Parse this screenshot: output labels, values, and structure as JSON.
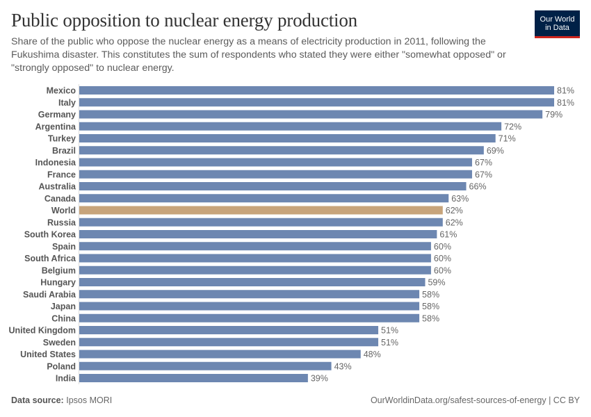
{
  "header": {
    "title": "Public opposition to nuclear energy production",
    "subtitle": "Share of the public who oppose the nuclear energy as a means of electricity production in 2011, following the Fukushima disaster. This constitutes the sum of respondents who stated they were either \"somewhat opposed\" or \"strongly opposed\" to nuclear energy.",
    "logo_line1": "Our World",
    "logo_line2": "in Data"
  },
  "footer": {
    "source_label": "Data source:",
    "source": "Ipsos MORI",
    "url": "OurWorldinData.org/safest-sources-of-energy | CC BY"
  },
  "colors": {
    "bar": "#6d87b1",
    "highlight": "#c7a47b",
    "logo_bg": "#002147",
    "logo_accent": "#ce261e"
  },
  "chart_data": {
    "type": "bar",
    "orientation": "horizontal",
    "unit": "%",
    "xlim": [
      0,
      81
    ],
    "grid": false,
    "highlight": "World",
    "categories": [
      "Mexico",
      "Italy",
      "Germany",
      "Argentina",
      "Turkey",
      "Brazil",
      "Indonesia",
      "France",
      "Australia",
      "Canada",
      "World",
      "Russia",
      "South Korea",
      "Spain",
      "South Africa",
      "Belgium",
      "Hungary",
      "Saudi Arabia",
      "Japan",
      "China",
      "United Kingdom",
      "Sweden",
      "United States",
      "Poland",
      "India"
    ],
    "values": [
      81,
      81,
      79,
      72,
      71,
      69,
      67,
      67,
      66,
      63,
      62,
      62,
      61,
      60,
      60,
      60,
      59,
      58,
      58,
      58,
      51,
      51,
      48,
      43,
      39
    ]
  }
}
